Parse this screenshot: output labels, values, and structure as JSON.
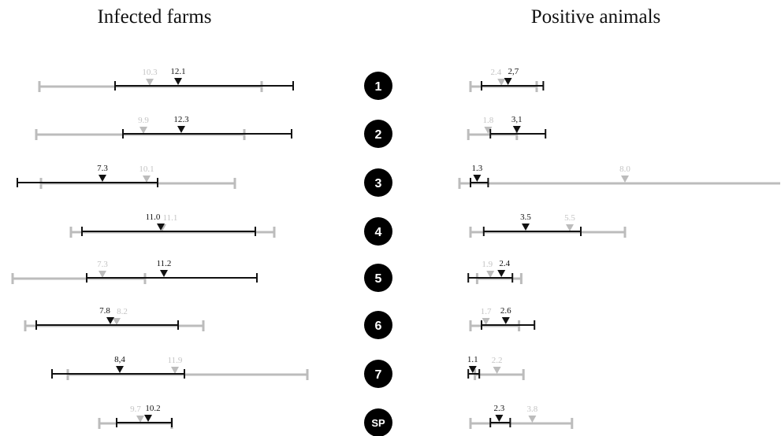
{
  "chart_data": {
    "type": "interval",
    "colors": {
      "primary": "#111111",
      "secondary": "#bcbcbc",
      "badge": "#000000"
    },
    "rows": [
      "1",
      "2",
      "3",
      "4",
      "5",
      "6",
      "7",
      "SP"
    ],
    "panels": [
      {
        "title": "Infected farms",
        "primary": [
          {
            "value": 12.1,
            "label": "12.1",
            "low": 8.1,
            "high": 19.4
          },
          {
            "value": 12.3,
            "label": "12.3",
            "low": 8.6,
            "high": 19.3
          },
          {
            "value": 7.3,
            "label": "7.3",
            "low": 1.9,
            "high": 10.8
          },
          {
            "value": 11.0,
            "label": "11.0",
            "low": 6.0,
            "high": 17.0
          },
          {
            "value": 11.2,
            "label": "11.2",
            "low": 6.3,
            "high": 17.1
          },
          {
            "value": 7.8,
            "label": "7.8",
            "low": 3.1,
            "high": 12.1
          },
          {
            "value": 8.4,
            "label": "8,4",
            "low": 4.1,
            "high": 12.5
          },
          {
            "value": 10.2,
            "label": "10.2",
            "low": 8.2,
            "high": 11.7
          }
        ],
        "secondary": [
          {
            "value": 10.3,
            "label": "10.3",
            "low": 3.3,
            "high": 17.4
          },
          {
            "value": 9.9,
            "label": "9.9",
            "low": 3.1,
            "high": 16.3
          },
          {
            "value": 10.1,
            "label": "10.1",
            "low": 3.4,
            "high": 15.7
          },
          {
            "value": 11.1,
            "label": "11.1",
            "low": 5.3,
            "high": 18.2
          },
          {
            "value": 7.3,
            "label": "7.3",
            "low": 1.6,
            "high": 10.0
          },
          {
            "value": 8.2,
            "label": "8.2",
            "low": 2.4,
            "high": 13.7
          },
          {
            "value": 11.9,
            "label": "11.9",
            "low": 5.1,
            "high": 20.3
          },
          {
            "value": 9.7,
            "label": "9.7",
            "low": 7.1,
            "high": 11.7
          }
        ]
      },
      {
        "title": "Positive animals",
        "primary": [
          {
            "value": 2.7,
            "label": "2,7",
            "low": 1.5,
            "high": 4.3
          },
          {
            "value": 3.1,
            "label": "3,1",
            "low": 1.9,
            "high": 4.4
          },
          {
            "value": 1.3,
            "label": "1.3",
            "low": 1.0,
            "high": 1.8
          },
          {
            "value": 3.5,
            "label": "3.5",
            "low": 1.6,
            "high": 6.0
          },
          {
            "value": 2.4,
            "label": "2.4",
            "low": 0.9,
            "high": 2.9
          },
          {
            "value": 2.6,
            "label": "2.6",
            "low": 1.5,
            "high": 3.9
          },
          {
            "value": 1.1,
            "label": "1.1",
            "low": 0.9,
            "high": 1.4
          },
          {
            "value": 2.3,
            "label": "2.3",
            "low": 1.9,
            "high": 2.8
          }
        ],
        "secondary": [
          {
            "value": 2.4,
            "label": "2.4",
            "low": 1.0,
            "high": 4.0
          },
          {
            "value": 1.8,
            "label": "1.8",
            "low": 0.9,
            "high": 3.1
          },
          {
            "value": 8.0,
            "label": "8.0",
            "low": 0.5,
            "high": 20.0
          },
          {
            "value": 5.5,
            "label": "5.5",
            "low": 1.0,
            "high": 8.0
          },
          {
            "value": 1.9,
            "label": "1.9",
            "low": 1.3,
            "high": 3.3
          },
          {
            "value": 1.7,
            "label": "1.7",
            "low": 1.0,
            "high": 3.2
          },
          {
            "value": 2.2,
            "label": "2.2",
            "low": 1.2,
            "high": 3.4
          },
          {
            "value": 3.8,
            "label": "3.8",
            "low": 1.0,
            "high": 5.6
          }
        ]
      }
    ]
  }
}
